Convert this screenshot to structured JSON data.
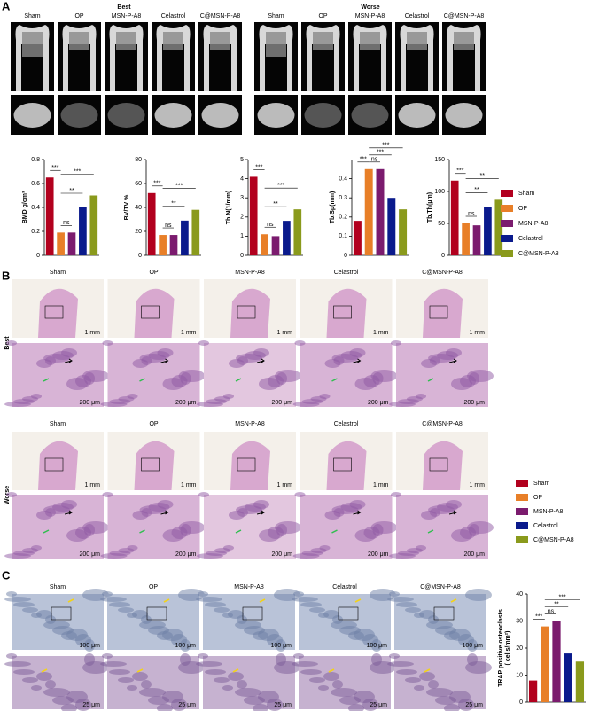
{
  "panels": [
    "A",
    "B",
    "C"
  ],
  "panel_a": {
    "headers": [
      "Best",
      "Worse"
    ]
  },
  "panel_b": {
    "rows": [
      "Best",
      "Worse"
    ],
    "scale_bars": [
      "1 mm",
      "200 μm"
    ]
  },
  "panel_c": {
    "scale_bars": [
      "100 μm",
      "25 μm"
    ]
  },
  "chart_data": [
    {
      "type": "bar",
      "ylabel": [
        "BMD g/cm³"
      ],
      "categories": [
        "Sham",
        "OP",
        "MSN-P-A8",
        "Celastrol",
        "C@MSN-P-A8"
      ],
      "colors": [
        "#b2001e",
        "#e87f28",
        "#7b1b6e",
        "#0a1a8c",
        "#8a9a1c"
      ],
      "values": [
        0.65,
        0.19,
        0.19,
        0.4,
        0.5
      ],
      "ylim": [
        0,
        0.8
      ],
      "yticks": [
        0,
        0.2,
        0.4,
        0.6,
        0.8
      ],
      "annotations": [
        "***",
        "ns",
        "**",
        "***"
      ]
    },
    {
      "type": "bar",
      "ylabel": [
        "BV/TV %"
      ],
      "categories": [
        "Sham",
        "OP",
        "MSN-P-A8",
        "Celastrol",
        "C@MSN-P-A8"
      ],
      "colors": [
        "#b2001e",
        "#e87f28",
        "#7b1b6e",
        "#0a1a8c",
        "#8a9a1c"
      ],
      "values": [
        52,
        17,
        17,
        29,
        38
      ],
      "ylim": [
        0,
        80
      ],
      "yticks": [
        0,
        20,
        40,
        60,
        80
      ],
      "annotations": [
        "***",
        "ns",
        "**",
        "***"
      ]
    },
    {
      "type": "bar",
      "ylabel": [
        "Tb.N(1/mm)"
      ],
      "categories": [
        "Sham",
        "OP",
        "MSN-P-A8",
        "Celastrol",
        "C@MSN-P-A8"
      ],
      "colors": [
        "#b2001e",
        "#e87f28",
        "#7b1b6e",
        "#0a1a8c",
        "#8a9a1c"
      ],
      "values": [
        4.1,
        1.1,
        1.0,
        1.8,
        2.4
      ],
      "ylim": [
        0,
        5
      ],
      "yticks": [
        0,
        1,
        2,
        3,
        4,
        5
      ],
      "annotations": [
        "***",
        "ns",
        "**",
        "***"
      ]
    },
    {
      "type": "bar",
      "ylabel": [
        "Tb.Sp(mm)"
      ],
      "categories": [
        "Sham",
        "OP",
        "MSN-P-A8",
        "Celastrol",
        "C@MSN-P-A8"
      ],
      "colors": [
        "#b2001e",
        "#e87f28",
        "#7b1b6e",
        "#0a1a8c",
        "#8a9a1c"
      ],
      "values": [
        0.18,
        0.45,
        0.45,
        0.3,
        0.24
      ],
      "ylim": [
        0,
        0.5
      ],
      "yticks": [
        0,
        0.1,
        0.2,
        0.3,
        0.4
      ],
      "annotations": [
        "***",
        "ns",
        "***",
        "***"
      ]
    },
    {
      "type": "bar",
      "ylabel": [
        "Tb.Th(μm)"
      ],
      "categories": [
        "Sham",
        "OP",
        "MSN-P-A8",
        "Celastrol",
        "C@MSN-P-A8"
      ],
      "colors": [
        "#b2001e",
        "#e87f28",
        "#7b1b6e",
        "#0a1a8c",
        "#8a9a1c"
      ],
      "values": [
        117,
        50,
        47,
        76,
        87
      ],
      "ylim": [
        0,
        150
      ],
      "yticks": [
        0,
        50,
        100,
        150
      ],
      "annotations": [
        "***",
        "ns",
        "**",
        "**"
      ]
    },
    {
      "type": "bar",
      "ylabel": [
        "TRAP positive osteoclasts",
        "( cells/mm²)"
      ],
      "categories": [
        "Sham",
        "OP",
        "MSN-P-A8",
        "Celastrol",
        "C@MSN-P-A8"
      ],
      "colors": [
        "#b2001e",
        "#e87f28",
        "#7b1b6e",
        "#0a1a8c",
        "#8a9a1c"
      ],
      "values": [
        8,
        28,
        30,
        18,
        15
      ],
      "ylim": [
        0,
        40
      ],
      "yticks": [
        0,
        10,
        20,
        30,
        40
      ],
      "annotations": [
        "***",
        "ns",
        "**",
        "***"
      ]
    }
  ]
}
